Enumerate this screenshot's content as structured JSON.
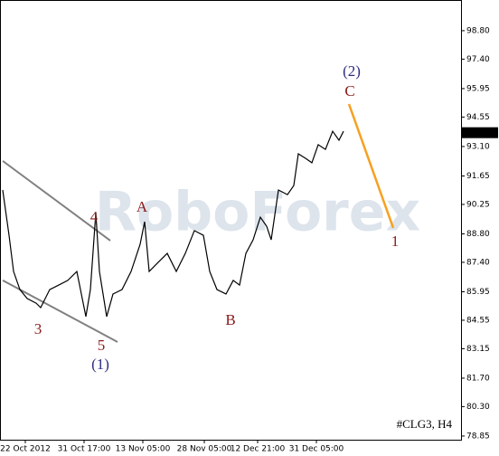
{
  "chart_data": {
    "type": "line",
    "title": "#CLG3, H4",
    "series": [
      {
        "color": "#000000",
        "x": [
          3,
          10,
          15,
          22,
          30,
          40,
          45,
          55,
          65,
          75,
          85,
          95,
          100,
          106,
          110,
          118,
          125,
          135,
          145,
          155,
          160,
          165,
          175,
          185,
          195,
          205,
          215,
          225,
          232,
          240,
          250,
          258,
          265,
          272,
          280,
          288,
          295,
          300,
          308,
          318,
          325,
          330,
          338,
          345,
          352,
          360,
          368,
          375,
          380
        ],
        "values": [
          90.96,
          88.73,
          86.95,
          86.06,
          85.62,
          85.39,
          85.17,
          86.06,
          86.28,
          86.51,
          86.95,
          84.73,
          86.06,
          89.85,
          86.95,
          84.73,
          85.84,
          86.06,
          86.95,
          88.29,
          89.4,
          86.95,
          87.4,
          87.84,
          86.95,
          87.84,
          88.96,
          88.73,
          86.95,
          86.06,
          85.84,
          86.51,
          86.28,
          87.84,
          88.51,
          89.62,
          89.17,
          88.51,
          90.96,
          90.73,
          91.18,
          92.74,
          92.52,
          92.3,
          93.19,
          92.96,
          93.85,
          93.41,
          93.85
        ]
      },
      {
        "color": "#f7a020",
        "x": [
          386,
          435
        ],
        "values": [
          95.19,
          89.09
        ]
      }
    ],
    "trendlines": [
      {
        "color": "#808080",
        "x": [
          3,
          122
        ],
        "values": [
          92.39,
          88.47
        ]
      },
      {
        "color": "#808080",
        "x": [
          3,
          130
        ],
        "values": [
          86.51,
          83.48
        ]
      }
    ],
    "annotations": [
      {
        "text": "(2)",
        "x": 389,
        "y": 96.75,
        "color": "#2e2e80"
      },
      {
        "text": "C",
        "x": 387,
        "y": 95.77,
        "color": "#8b1a1a"
      },
      {
        "text": "A",
        "x": 157,
        "y": 90.07,
        "color": "#8b1a1a"
      },
      {
        "text": "4",
        "x": 104,
        "y": 89.58,
        "color": "#8b1a1a"
      },
      {
        "text": "B",
        "x": 255,
        "y": 84.5,
        "color": "#8b1a1a"
      },
      {
        "text": "3",
        "x": 42,
        "y": 84.06,
        "color": "#8b1a1a"
      },
      {
        "text": "5",
        "x": 112,
        "y": 83.26,
        "color": "#8b1a1a"
      },
      {
        "text": "(1)",
        "x": 111,
        "y": 82.32,
        "color": "#2e2e80"
      },
      {
        "text": "1",
        "x": 437,
        "y": 88.38,
        "color": "#8b1a1a"
      }
    ],
    "last_price": 93.78,
    "xlim": [
      0,
      510
    ],
    "xticks": [
      {
        "value": 28,
        "label": "22 Oct 2012"
      },
      {
        "value": 93,
        "label": "31 Oct 17:00"
      },
      {
        "value": 158,
        "label": "13 Nov 05:00"
      },
      {
        "value": 226,
        "label": "28 Nov 05:00"
      },
      {
        "value": 285,
        "label": "12 Dec 21:00"
      },
      {
        "value": 350,
        "label": "31 Dec 05:00"
      }
    ],
    "ylim": [
      78.67,
      100.31
    ],
    "yticks": [
      78.85,
      {
        "value": 80.3,
        "label": "80.30"
      },
      {
        "value": 81.7,
        "label": "81.70"
      },
      83.15,
      84.55,
      85.95,
      {
        "value": 87.4,
        "label": "87.40"
      },
      {
        "value": 88.8,
        "label": "88.80"
      },
      90.25,
      91.65,
      {
        "value": 93.1,
        "label": "93.10"
      },
      94.55,
      95.95,
      {
        "value": 97.4,
        "label": "97.40"
      },
      {
        "value": 98.8,
        "label": "98.80"
      }
    ]
  }
}
